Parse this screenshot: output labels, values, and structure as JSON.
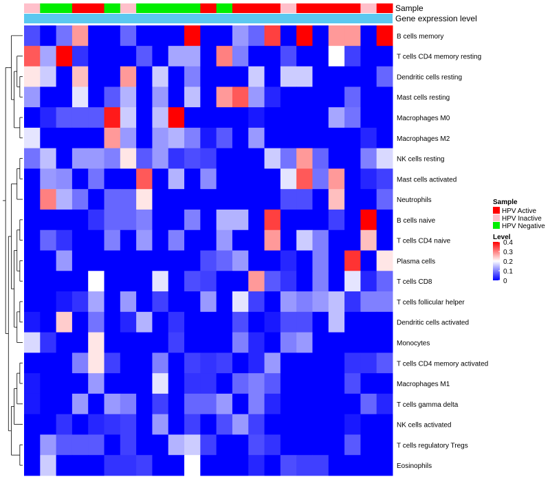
{
  "chart_data": {
    "type": "heatmap",
    "annotation_labels": [
      "Sample",
      "Gene expression level"
    ],
    "sample_groups": [
      "HPV Inactive",
      "HPV Negative",
      "HPV Negative",
      "HPV Active",
      "HPV Active",
      "HPV Negative",
      "HPV Inactive",
      "HPV Negative",
      "HPV Negative",
      "HPV Negative",
      "HPV Negative",
      "HPV Active",
      "HPV Negative",
      "HPV Active",
      "HPV Active",
      "HPV Active",
      "HPV Inactive",
      "HPV Active",
      "HPV Active",
      "HPV Active",
      "HPV Active",
      "HPV Inactive",
      "HPV Active"
    ],
    "group_colors": {
      "HPV Active": "#ff0000",
      "HPV Inactive": "#ffc0cb",
      "HPV Negative": "#00ee00"
    },
    "expression_color": "#5bc8f0",
    "rows": [
      "B cells memory",
      "T cells CD4 memory resting",
      "Dendritic cells resting",
      "Mast cells resting",
      "Macrophages M0",
      "Macrophages M2",
      "NK cells resting",
      "Mast cells activated",
      "Neutrophils",
      "B cells naive",
      "T cells CD4 naive",
      "Plasma cells",
      "T cells CD8",
      "T cells follicular helper",
      "Dendritic cells activated",
      "Monocytes",
      "T cells CD4 memory activated",
      "Macrophages M1",
      "T cells gamma delta",
      "NK cells activated",
      "T cells regulatory  Tregs",
      "Eosinophils"
    ],
    "values": [
      [
        0.06,
        0,
        0.09,
        0.28,
        0,
        0,
        0.08,
        0,
        0,
        0,
        0.4,
        0,
        0,
        0.12,
        0.08,
        0.35,
        0,
        0.4,
        0,
        0.28,
        0.28,
        0,
        0.4
      ],
      [
        0.33,
        0.13,
        0.4,
        0.04,
        0,
        0,
        0,
        0.07,
        0,
        0.13,
        0.13,
        0,
        0.3,
        0.1,
        0,
        0,
        0.06,
        0,
        0,
        0.2,
        0.05,
        0,
        0
      ],
      [
        0.22,
        0.16,
        0,
        0.25,
        0,
        0,
        0.28,
        0,
        0.16,
        0,
        0.1,
        0,
        0,
        0,
        0.16,
        0,
        0.16,
        0.16,
        0,
        0,
        0,
        0,
        0.08
      ],
      [
        0.12,
        0,
        0,
        0.18,
        0,
        0.07,
        0.14,
        0,
        0.12,
        0,
        0.15,
        0,
        0.28,
        0.33,
        0.12,
        0.03,
        0,
        0,
        0,
        0,
        0.08,
        0,
        0
      ],
      [
        0,
        0.03,
        0.07,
        0.07,
        0.07,
        0.38,
        0.16,
        0,
        0.15,
        0.4,
        0,
        0,
        0,
        0,
        0.02,
        0,
        0,
        0,
        0,
        0.13,
        0.09,
        0,
        0
      ],
      [
        0.18,
        0,
        0,
        0,
        0,
        0.28,
        0.12,
        0,
        0.12,
        0.14,
        0.1,
        0.02,
        0.07,
        0,
        0.12,
        0,
        0,
        0,
        0,
        0,
        0,
        0.03,
        0
      ],
      [
        0.09,
        0.15,
        0,
        0.12,
        0.12,
        0.1,
        0.22,
        0.07,
        0.12,
        0.04,
        0.06,
        0.05,
        0,
        0,
        0,
        0.16,
        0.09,
        0.28,
        0.08,
        0,
        0,
        0.1,
        0.17
      ],
      [
        0,
        0.12,
        0.11,
        0,
        0.09,
        0,
        0,
        0.33,
        0,
        0.14,
        0,
        0.11,
        0,
        0,
        0,
        0,
        0.18,
        0.33,
        0.09,
        0.28,
        0,
        0.03,
        0.05
      ],
      [
        0,
        0.3,
        0.14,
        0.09,
        0,
        0.08,
        0.08,
        0.22,
        0,
        0,
        0,
        0,
        0,
        0,
        0,
        0,
        0.06,
        0.06,
        0,
        0.25,
        0,
        0,
        0.08
      ],
      [
        0,
        0,
        0,
        0,
        0.04,
        0.08,
        0.08,
        0.1,
        0,
        0,
        0.1,
        0,
        0.14,
        0.14,
        0,
        0.35,
        0,
        0,
        0,
        0.05,
        0,
        0.4,
        0
      ],
      [
        0,
        0.08,
        0.04,
        0,
        0,
        0.1,
        0,
        0.12,
        0,
        0.1,
        0,
        0,
        0.12,
        0,
        0,
        0.28,
        0,
        0.16,
        0.1,
        0,
        0,
        0.25,
        0
      ],
      [
        0,
        0,
        0.12,
        0,
        0,
        0,
        0,
        0,
        0,
        0,
        0,
        0.06,
        0.08,
        0.12,
        0,
        0,
        0.03,
        0,
        0.1,
        0,
        0.36,
        0,
        0.22
      ],
      [
        0,
        0,
        0,
        0,
        0.2,
        0,
        0,
        0,
        0.18,
        0,
        0.06,
        0.05,
        0,
        0,
        0.28,
        0.07,
        0.04,
        0,
        0.1,
        0,
        0.18,
        0.03,
        0.08
      ],
      [
        0,
        0,
        0.02,
        0.04,
        0.13,
        0,
        0.12,
        0,
        0.05,
        0,
        0,
        0.12,
        0,
        0.18,
        0.05,
        0,
        0.12,
        0.1,
        0.12,
        0.15,
        0.04,
        0.1,
        0.1
      ],
      [
        0.02,
        0,
        0.24,
        0,
        0.09,
        0,
        0.03,
        0.14,
        0,
        0.04,
        0,
        0,
        0,
        0.06,
        0,
        0.02,
        0.06,
        0.06,
        0,
        0.15,
        0,
        0,
        0
      ],
      [
        0.17,
        0.04,
        0,
        0,
        0.22,
        0,
        0,
        0,
        0,
        0.05,
        0,
        0,
        0,
        0.1,
        0.03,
        0,
        0.1,
        0.12,
        0,
        0,
        0,
        0,
        0
      ],
      [
        0,
        0,
        0,
        0.1,
        0.22,
        0.05,
        0,
        0,
        0.1,
        0,
        0.05,
        0.04,
        0.05,
        0,
        0.03,
        0.12,
        0,
        0,
        0,
        0,
        0.04,
        0.04,
        0.07
      ],
      [
        0.02,
        0,
        0,
        0,
        0.12,
        0,
        0,
        0,
        0.18,
        0,
        0.04,
        0.04,
        0,
        0.08,
        0.1,
        0.07,
        0,
        0,
        0,
        0,
        0.06,
        0,
        0
      ],
      [
        0.02,
        0,
        0,
        0.12,
        0,
        0.12,
        0.1,
        0,
        0.05,
        0,
        0.08,
        0.08,
        0.12,
        0,
        0.1,
        0.03,
        0,
        0,
        0,
        0,
        0,
        0.08,
        0.03
      ],
      [
        0,
        0,
        0.04,
        0,
        0.03,
        0.04,
        0.05,
        0,
        0.12,
        0,
        0.05,
        0,
        0.06,
        0.12,
        0.05,
        0,
        0,
        0,
        0,
        0,
        0.02,
        0,
        0
      ],
      [
        0,
        0.12,
        0.07,
        0.07,
        0.07,
        0,
        0.05,
        0,
        0,
        0.14,
        0.16,
        0.05,
        0,
        0,
        0.06,
        0.04,
        0,
        0,
        0,
        0,
        0.07,
        0,
        0
      ],
      [
        0,
        0.16,
        0,
        0,
        0,
        0.04,
        0.04,
        0.05,
        0,
        0,
        0.2,
        0,
        0,
        0,
        0.03,
        0,
        0.06,
        0.05,
        0.05,
        0,
        0,
        0,
        0
      ]
    ],
    "legend": {
      "sample_title": "Sample",
      "sample_entries": [
        "HPV Active",
        "HPV Inactive",
        "HPV Negative"
      ],
      "level_title": "Level",
      "level_ticks": [
        "0.4",
        "0.3",
        "0.2",
        "0.1",
        "0"
      ],
      "level_range": [
        0,
        0.4
      ],
      "color_low": "#0000ff",
      "color_mid": "#ffffff",
      "color_high": "#ff0000"
    }
  }
}
